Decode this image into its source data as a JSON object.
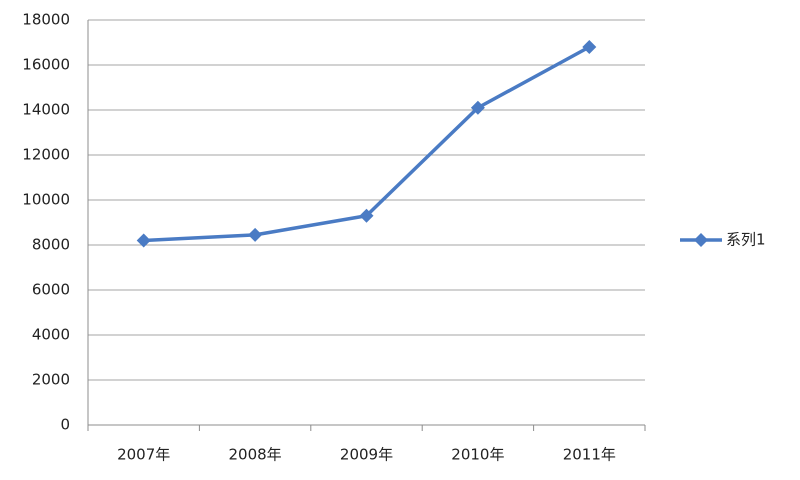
{
  "chart_data": {
    "type": "line",
    "categories": [
      "2007年",
      "2008年",
      "2009年",
      "2010年",
      "2011年"
    ],
    "series": [
      {
        "name": "系列1",
        "color": "#4a7bc4",
        "values": [
          8200,
          8450,
          9300,
          14100,
          16800
        ]
      }
    ],
    "ylim": [
      0,
      18000
    ],
    "yticks": [
      0,
      2000,
      4000,
      6000,
      8000,
      10000,
      12000,
      14000,
      16000,
      18000
    ],
    "grid": true,
    "legend": "right"
  }
}
